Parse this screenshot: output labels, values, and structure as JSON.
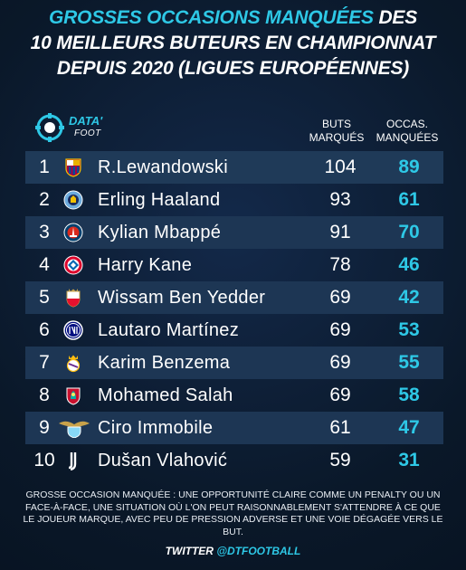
{
  "title": {
    "line1_highlight": "GROSSES OCCASIONS MANQUÉES",
    "line1_rest": " DES",
    "line2": "10 MEILLEURS BUTEURS EN CHAMPIONNAT",
    "line3": "DEPUIS 2020 (LIGUES EUROPÉENNES)"
  },
  "logo": {
    "data": "DATA'",
    "foot": "FOOT",
    "icon": "data-foot-logo-icon"
  },
  "headers": {
    "buts_line1": "BUTS",
    "buts_line2": "MARQUÉS",
    "occ_line1": "OCCAS.",
    "occ_line2": "MANQUÉES"
  },
  "rows": [
    {
      "rank": "1",
      "name": "R.Lewandowski",
      "buts": "104",
      "occ": "89",
      "club": "barcelona-crest-icon"
    },
    {
      "rank": "2",
      "name": "Erling Haaland",
      "buts": "93",
      "occ": "61",
      "club": "man-city-crest-icon"
    },
    {
      "rank": "3",
      "name": "Kylian Mbappé",
      "buts": "91",
      "occ": "70",
      "club": "psg-crest-icon"
    },
    {
      "rank": "4",
      "name": "Harry Kane",
      "buts": "78",
      "occ": "46",
      "club": "bayern-crest-icon"
    },
    {
      "rank": "5",
      "name": "Wissam Ben Yedder",
      "buts": "69",
      "occ": "42",
      "club": "monaco-crest-icon"
    },
    {
      "rank": "6",
      "name": "Lautaro Martínez",
      "buts": "69",
      "occ": "53",
      "club": "inter-crest-icon"
    },
    {
      "rank": "7",
      "name": "Karim Benzema",
      "buts": "69",
      "occ": "55",
      "club": "real-madrid-crest-icon"
    },
    {
      "rank": "8",
      "name": "Mohamed Salah",
      "buts": "69",
      "occ": "58",
      "club": "liverpool-crest-icon"
    },
    {
      "rank": "9",
      "name": "Ciro Immobile",
      "buts": "61",
      "occ": "47",
      "club": "lazio-crest-icon"
    },
    {
      "rank": "10",
      "name": "Dušan Vlahović",
      "buts": "59",
      "occ": "31",
      "club": "juventus-crest-icon"
    }
  ],
  "note": "GROSSE OCCASION MANQUÉE : UNE OPPORTUNITÉ CLAIRE COMME UN PENALTY OU UN FACE-À-FACE, UNE SITUATION OÙ L'ON PEUT RAISONNABLEMENT S'ATTENDRE À CE QUE LE JOUEUR MARQUE, AVEC PEU DE PRESSION ADVERSE ET UNE VOIE DÉGAGÉE VERS LE BUT.",
  "twitter": {
    "prefix": "TWITTER ",
    "account": "@DTFOOTBALL"
  },
  "colors": {
    "accent": "#2ec8e6",
    "background": "#0c1c30",
    "row_band": "#1d3654"
  }
}
